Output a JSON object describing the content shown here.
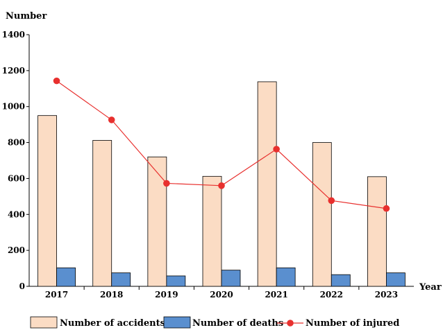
{
  "chart_data": {
    "type": "bar",
    "title": "",
    "ylabel": "Number",
    "xlabel": "Year",
    "categories": [
      "2017",
      "2018",
      "2019",
      "2020",
      "2021",
      "2022",
      "2023"
    ],
    "ylim": [
      0,
      1400
    ],
    "yticks": [
      0,
      200,
      400,
      600,
      800,
      1000,
      1200,
      1400
    ],
    "grid": false,
    "legend_position": "bottom",
    "series": [
      {
        "name": "Number of accidents",
        "type": "bar",
        "color": "#fbdcc4",
        "values": [
          950,
          812,
          720,
          612,
          1138,
          800,
          610
        ]
      },
      {
        "name": "Number of deaths",
        "type": "bar",
        "color": "#5a8fcf",
        "values": [
          103,
          75,
          58,
          90,
          103,
          65,
          75
        ]
      },
      {
        "name": "Number of injured",
        "type": "line",
        "color": "#e8302e",
        "values": [
          1143,
          926,
          573,
          560,
          763,
          477,
          433
        ]
      }
    ]
  }
}
